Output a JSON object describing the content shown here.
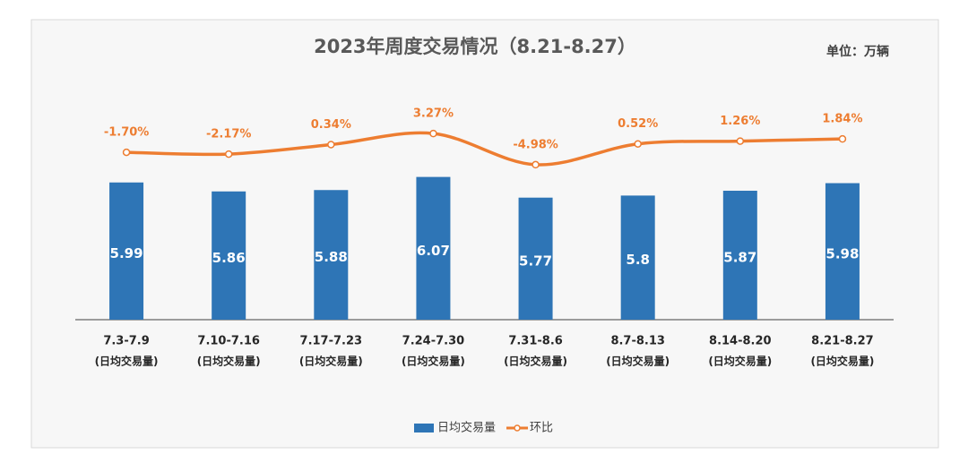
{
  "chart_data": {
    "type": "bar_line",
    "title": "2023年周度交易情况（8.21-8.27）",
    "unit_label": "单位：万辆",
    "categories": [
      "7.3-7.9",
      "7.10-7.16",
      "7.17-7.23",
      "7.24-7.30",
      "7.31-8.6",
      "8.7-8.13",
      "8.14-8.20",
      "8.21-8.27"
    ],
    "category_sublabel": "(日均交易量)",
    "series": [
      {
        "name": "日均交易量",
        "type": "bar",
        "color": "#2e75b6",
        "values": [
          5.99,
          5.86,
          5.88,
          6.07,
          5.77,
          5.8,
          5.87,
          5.98
        ]
      },
      {
        "name": "环比",
        "type": "line",
        "axis": "y2",
        "color": "#ed7d31",
        "smooth": true,
        "values": [
          -1.7,
          -2.17,
          0.34,
          3.27,
          -4.98,
          0.52,
          1.26,
          1.84
        ],
        "value_labels": [
          "-1.70%",
          "-2.17%",
          "0.34%",
          "3.27%",
          "-4.98%",
          "0.52%",
          "1.26%",
          "1.84%"
        ]
      }
    ],
    "ylim": [
      4,
      8
    ],
    "y2lim": [
      -46,
      27
    ],
    "legend": "bottom"
  }
}
